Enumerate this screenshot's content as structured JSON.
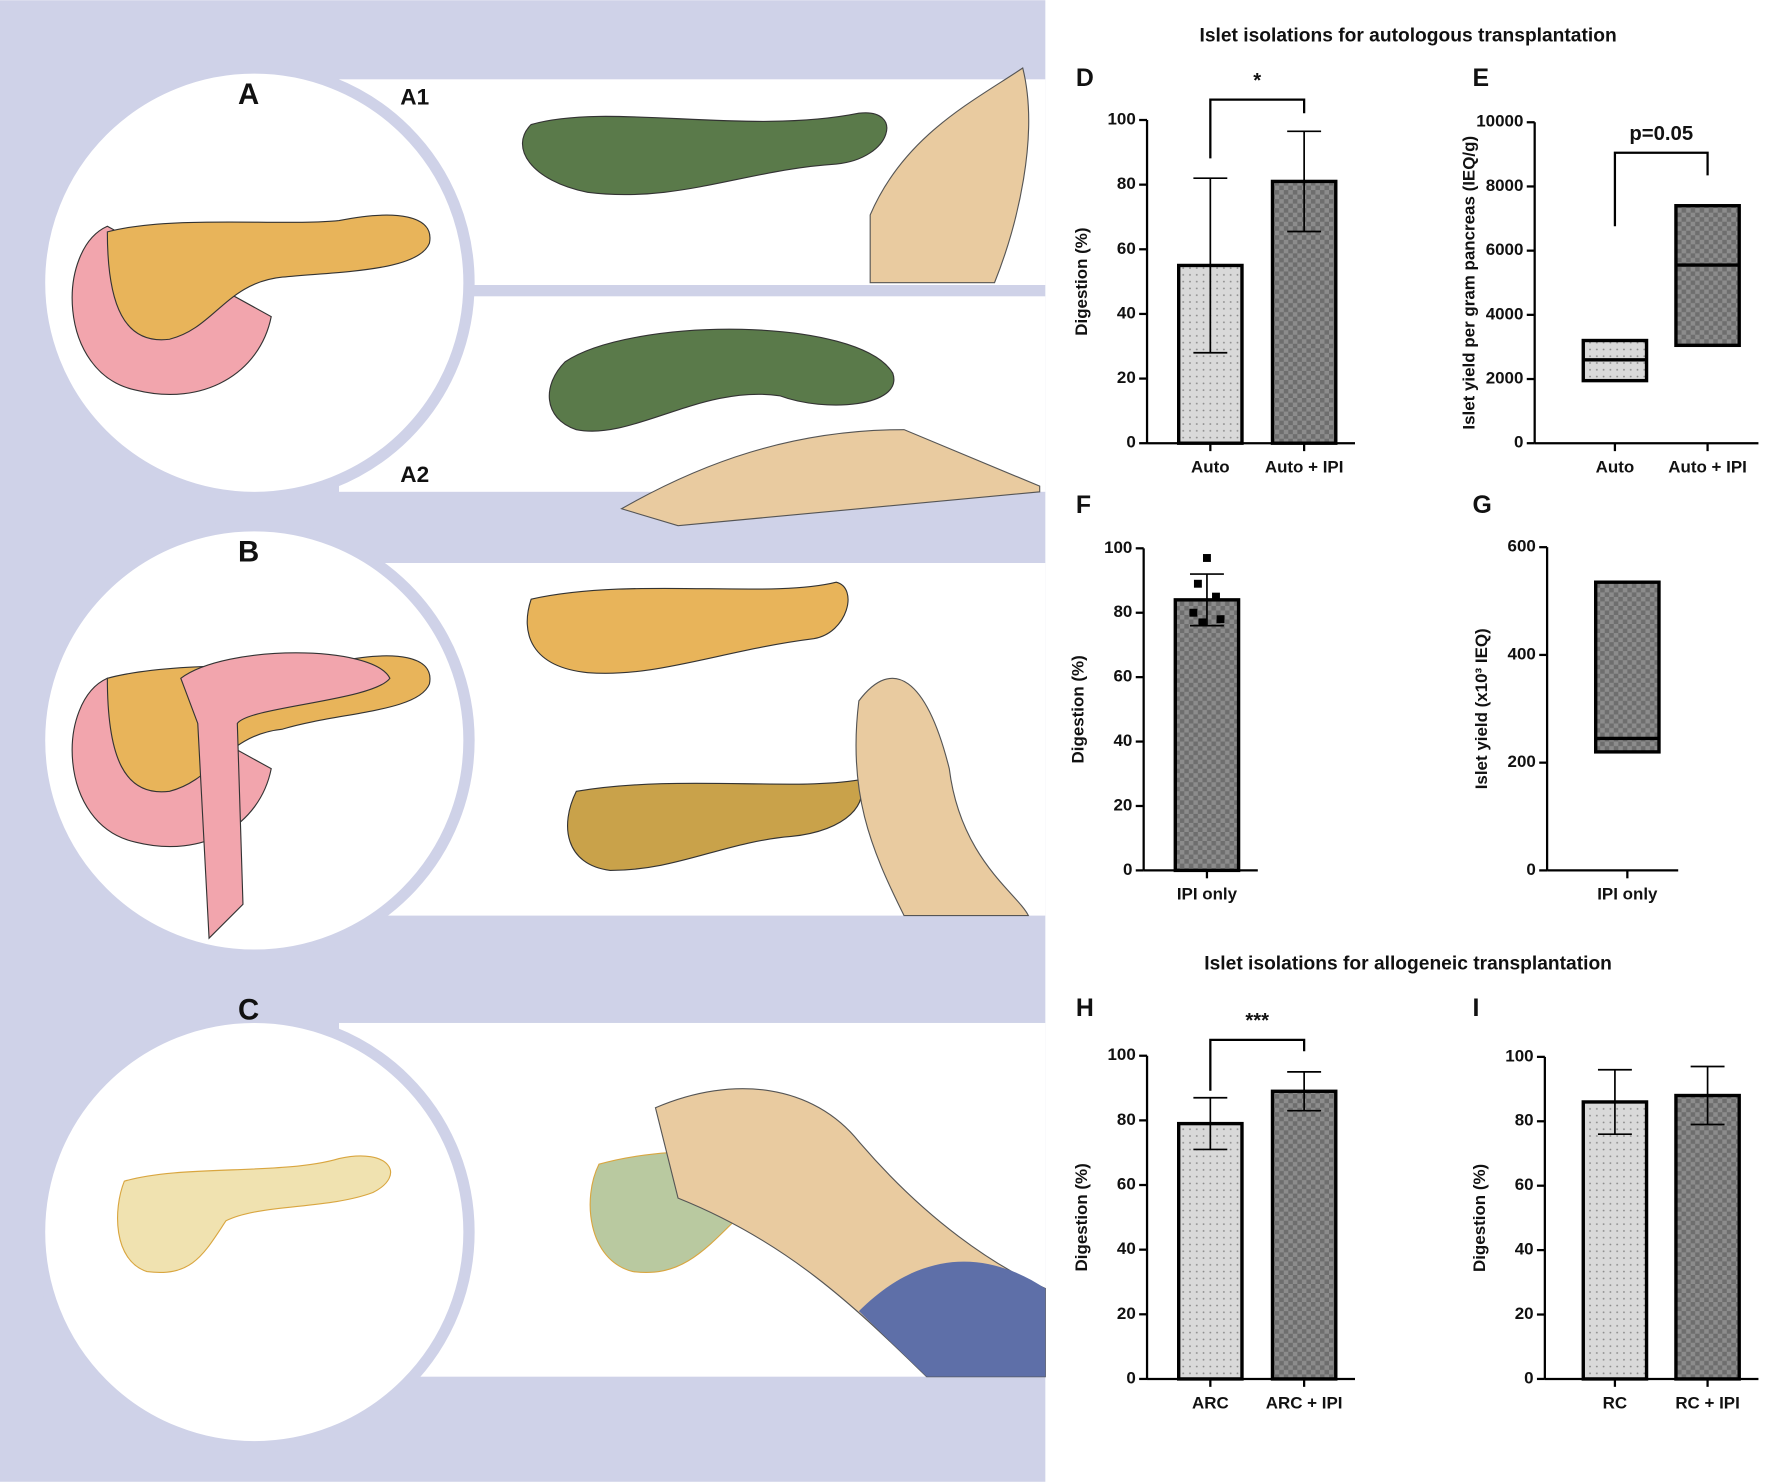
{
  "figure": {
    "titles": [
      "Islet isolations for autologous transplantation",
      "Islet isolations for allogeneic transplantation"
    ],
    "panels": [
      "A",
      "A1",
      "A2",
      "B",
      "C"
    ]
  },
  "chart_data": [
    {
      "type": "bar",
      "label": "D",
      "ylabel": "Digestion (%)",
      "categories": [
        "Auto",
        "Auto + IPI"
      ],
      "values": [
        55,
        81
      ],
      "errors": [
        27,
        15.5
      ],
      "colors": [
        "#d9d9d9",
        "#8c8c8c"
      ],
      "ylim": [
        0,
        100
      ],
      "yticks": [
        0,
        20,
        40,
        60,
        80,
        100
      ],
      "annotation": "*"
    },
    {
      "type": "box",
      "label": "E",
      "ylabel": "Islet yield per gram pancreas (IEQ/g)",
      "categories": [
        "Auto",
        "Auto + IPI"
      ],
      "low": [
        1950,
        3050
      ],
      "high": [
        3200,
        7400
      ],
      "median": [
        2600,
        5550
      ],
      "colors": [
        "#d9d9d9",
        "#8c8c8c"
      ],
      "ylim": [
        0,
        10000
      ],
      "yticks": [
        0,
        2000,
        4000,
        6000,
        8000,
        10000
      ],
      "annotation": "p=0.05"
    },
    {
      "type": "bar",
      "label": "F",
      "ylabel": "Digestion (%)",
      "categories": [
        "IPI only"
      ],
      "values": [
        84
      ],
      "errors": [
        8
      ],
      "points": [
        97,
        89,
        85,
        80,
        78,
        77
      ],
      "colors": [
        "#8c8c8c"
      ],
      "ylim": [
        0,
        100
      ],
      "yticks": [
        0,
        20,
        40,
        60,
        80,
        100
      ]
    },
    {
      "type": "box",
      "label": "G",
      "ylabel": "Islet yield (x10³ IEQ)",
      "categories": [
        "IPI only"
      ],
      "low": [
        220
      ],
      "high": [
        535
      ],
      "median": [
        245
      ],
      "colors": [
        "#8c8c8c"
      ],
      "ylim": [
        0,
        600
      ],
      "yticks": [
        0,
        200,
        400,
        600
      ]
    },
    {
      "type": "bar",
      "label": "H",
      "ylabel": "Digestion (%)",
      "categories": [
        "ARC",
        "ARC + IPI"
      ],
      "values": [
        79,
        89
      ],
      "errors": [
        8,
        6
      ],
      "colors": [
        "#d9d9d9",
        "#8c8c8c"
      ],
      "ylim": [
        0,
        100
      ],
      "yticks": [
        0,
        20,
        40,
        60,
        80,
        100
      ],
      "annotation": "***"
    },
    {
      "type": "bar",
      "label": "I",
      "ylabel": "Digestion (%)",
      "categories": [
        "RC",
        "RC + IPI"
      ],
      "values": [
        86,
        88
      ],
      "errors": [
        10,
        9
      ],
      "colors": [
        "#d9d9d9",
        "#8c8c8c"
      ],
      "ylim": [
        0,
        100
      ],
      "yticks": [
        0,
        20,
        40,
        60,
        80,
        100
      ]
    }
  ]
}
